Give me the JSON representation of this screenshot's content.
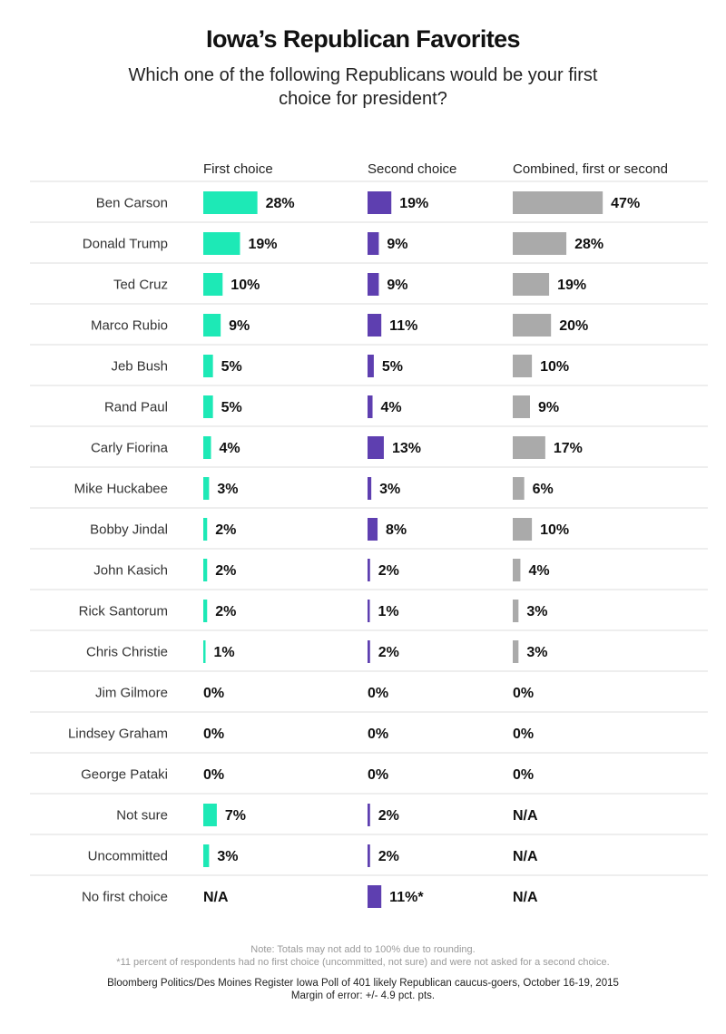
{
  "title": "Iowa’s Republican Favorites",
  "subtitle": "Which one of the following Republicans would be your first choice for president?",
  "colors": {
    "first": "#1de9b6",
    "second": "#5e3fb0",
    "combined": "#aaaaaa",
    "divider": "#dddddd"
  },
  "chart_data": {
    "type": "bar",
    "orientation": "horizontal",
    "unit": "%",
    "categories": [
      "Ben Carson",
      "Donald Trump",
      "Ted Cruz",
      "Marco Rubio",
      "Jeb Bush",
      "Rand Paul",
      "Carly Fiorina",
      "Mike Huckabee",
      "Bobby Jindal",
      "John Kasich",
      "Rick Santorum",
      "Chris Christie",
      "Jim Gilmore",
      "Lindsey Graham",
      "George Pataki",
      "Not sure",
      "Uncommitted",
      "No first choice"
    ],
    "series": [
      {
        "name": "First choice",
        "values": [
          28,
          19,
          10,
          9,
          5,
          5,
          4,
          3,
          2,
          2,
          2,
          1,
          0,
          0,
          0,
          7,
          3,
          null
        ],
        "labels": [
          "28%",
          "19%",
          "10%",
          "9%",
          "5%",
          "5%",
          "4%",
          "3%",
          "2%",
          "2%",
          "2%",
          "1%",
          "0%",
          "0%",
          "0%",
          "7%",
          "3%",
          "N/A"
        ]
      },
      {
        "name": "Second choice",
        "values": [
          19,
          9,
          9,
          11,
          5,
          4,
          13,
          3,
          8,
          2,
          1,
          2,
          0,
          0,
          0,
          2,
          2,
          11
        ],
        "labels": [
          "19%",
          "9%",
          "9%",
          "11%",
          "5%",
          "4%",
          "13%",
          "3%",
          "8%",
          "2%",
          "1%",
          "2%",
          "0%",
          "0%",
          "0%",
          "2%",
          "2%",
          "11%*"
        ]
      },
      {
        "name": "Combined, first or second",
        "values": [
          47,
          28,
          19,
          20,
          10,
          9,
          17,
          6,
          10,
          4,
          3,
          3,
          0,
          0,
          0,
          null,
          null,
          null
        ],
        "labels": [
          "47%",
          "28%",
          "19%",
          "20%",
          "10%",
          "9%",
          "17%",
          "6%",
          "10%",
          "4%",
          "3%",
          "3%",
          "0%",
          "0%",
          "0%",
          "N/A",
          "N/A",
          "N/A"
        ]
      }
    ]
  },
  "notes": [
    "Note: Totals may not add to 100% due to rounding.",
    "*11 percent of respondents had no first choice (uncommitted, not sure) and were not asked for a second choice."
  ],
  "source": [
    "Bloomberg Politics/Des Moines Register Iowa Poll of 401 likely Republican caucus-goers, October 16-19, 2015",
    "Margin of error: +/- 4.9 pct. pts."
  ]
}
